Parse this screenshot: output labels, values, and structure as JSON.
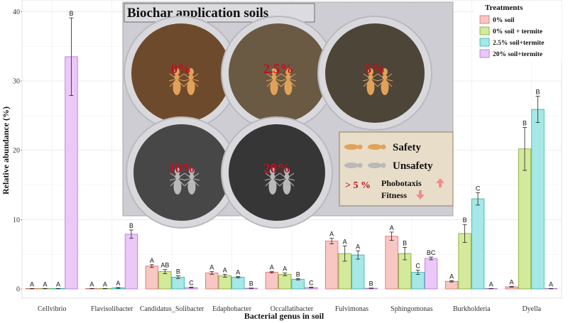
{
  "chart_data": {
    "type": "bar",
    "xlabel": "Bacterial genus in soil",
    "ylabel": "Relative abundance (%)",
    "ylim": [
      0,
      41
    ],
    "yticks": [
      0,
      10,
      20,
      30,
      40
    ],
    "grid": true,
    "legend_placement": "top-right",
    "legend_title": "Treatments",
    "categories": [
      "Cellvibrio",
      "Flavisolibacter",
      "Candidatus_Solibacter",
      "Edaphobacter",
      "Occallatibacter",
      "Fulvimonas",
      "Sphingomonas",
      "Burkholderia",
      "Dyella"
    ],
    "series": [
      {
        "name": "0% soil",
        "color": "#f8c6c3",
        "stroke": "#d96b66",
        "values": [
          0.05,
          0.05,
          3.3,
          2.3,
          2.4,
          6.9,
          7.6,
          1.1,
          0.3
        ],
        "errors": [
          0.02,
          0.02,
          0.2,
          0.2,
          0.1,
          0.4,
          0.6,
          0.1,
          0.05
        ],
        "letters": [
          "A",
          "A",
          "A",
          "A",
          "A",
          "A",
          "A",
          "A",
          "A"
        ]
      },
      {
        "name": "0% soil + termite",
        "color": "#d3ea9b",
        "stroke": "#7fa336",
        "values": [
          0.05,
          0.05,
          2.5,
          1.9,
          2.1,
          5.1,
          5.1,
          8.0,
          20.2
        ],
        "errors": [
          0.02,
          0.02,
          0.3,
          0.2,
          0.2,
          1.1,
          0.9,
          1.3,
          3.1
        ],
        "letters": [
          "A",
          "A",
          "AB",
          "A",
          "A",
          "A",
          "B",
          "B",
          "B"
        ]
      },
      {
        "name": "2.5% soil+termite",
        "color": "#a5e8e6",
        "stroke": "#2ab0ad",
        "values": [
          0.05,
          0.15,
          1.7,
          1.7,
          1.4,
          4.9,
          2.4,
          13.0,
          25.9
        ],
        "errors": [
          0.02,
          0.05,
          0.2,
          0.1,
          0.1,
          0.6,
          0.3,
          0.9,
          1.9
        ],
        "letters": [
          "A",
          "A",
          "B",
          "A",
          "B",
          "A",
          "C",
          "C",
          "B"
        ]
      },
      {
        "name": "20% soil+termite",
        "color": "#ebc8f7",
        "stroke": "#b26fd0",
        "values": [
          33.5,
          7.9,
          0.2,
          0.1,
          0.2,
          0.1,
          4.4,
          0.05,
          0.05
        ],
        "errors": [
          5.6,
          0.6,
          0.05,
          0.03,
          0.05,
          0.03,
          0.2,
          0.02,
          0.02
        ],
        "letters": [
          "B",
          "B",
          "C",
          "B",
          "C",
          "B",
          "BC",
          "A",
          "A"
        ]
      }
    ]
  },
  "inset": {
    "title": "Biochar application soils",
    "dish_labels": [
      "0%",
      "2.5%",
      "5%",
      "10%",
      "20%"
    ],
    "key": {
      "safety": "Safety",
      "unsafety": "Unsafety",
      "threshold": "> 5 %",
      "phobotaxis": "Phobotaxis",
      "fitness": "Fitness",
      "colors": {
        "safe_termite": "#e0a25a",
        "unsafe_termite": "#b9b9b9",
        "arrow": "#f08c8c"
      }
    }
  }
}
